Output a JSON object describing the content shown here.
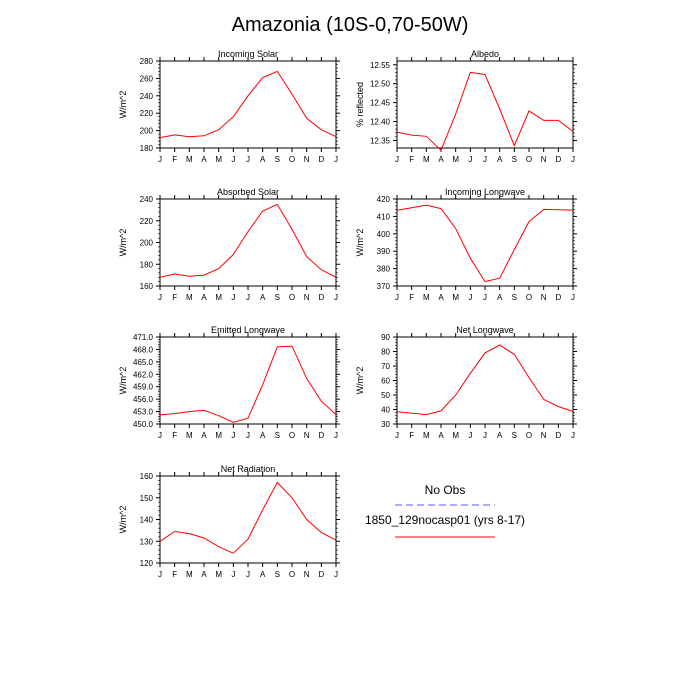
{
  "title": "Amazonia (10S-0,70-50W)",
  "legend": {
    "entries": [
      {
        "label": "No Obs",
        "color": "#5a5aff",
        "dashed": true
      },
      {
        "label": "1850_129nocasp01 (yrs 8-17)",
        "color": "#ff0000",
        "dashed": false
      }
    ]
  },
  "colors": {
    "model": "#ff0000",
    "obs": "#5a5aff",
    "axis": "#000000"
  },
  "chart_data": [
    {
      "type": "line",
      "title": "Incoming Solar",
      "ylabel": "W/m^2",
      "categories": [
        "J",
        "F",
        "M",
        "A",
        "M",
        "J",
        "J",
        "A",
        "S",
        "O",
        "N",
        "D",
        "J"
      ],
      "ylim": [
        180,
        280
      ],
      "yticks": [
        "180",
        "200",
        "220",
        "240",
        "260",
        "280"
      ],
      "ytick_values": [
        180,
        200,
        220,
        240,
        260,
        280
      ],
      "series": [
        {
          "name": "1850_129nocasp01 (yrs 8-17)",
          "values": [
            192,
            195,
            193,
            194,
            201,
            216,
            240,
            261,
            268,
            242,
            214,
            201,
            193
          ]
        }
      ]
    },
    {
      "type": "line",
      "title": "Albedo",
      "ylabel": "% reflected",
      "categories": [
        "J",
        "F",
        "M",
        "A",
        "M",
        "J",
        "J",
        "A",
        "S",
        "O",
        "N",
        "D",
        "J"
      ],
      "ylim": [
        12.33,
        12.56
      ],
      "yticks": [
        "12.35",
        "12.40",
        "12.45",
        "12.50",
        "12.55"
      ],
      "ytick_values": [
        12.35,
        12.4,
        12.45,
        12.5,
        12.55
      ],
      "series": [
        {
          "name": "1850_129nocasp01 (yrs 8-17)",
          "values": [
            12.372,
            12.364,
            12.361,
            12.324,
            12.42,
            12.53,
            12.524,
            12.433,
            12.336,
            12.428,
            12.403,
            12.403,
            12.374
          ]
        }
      ]
    },
    {
      "type": "line",
      "title": "Absorbed Solar",
      "ylabel": "W/m^2",
      "categories": [
        "J",
        "F",
        "M",
        "A",
        "M",
        "J",
        "J",
        "A",
        "S",
        "O",
        "N",
        "D",
        "J"
      ],
      "ylim": [
        160,
        240
      ],
      "yticks": [
        "160",
        "180",
        "200",
        "220",
        "240"
      ],
      "ytick_values": [
        160,
        180,
        200,
        220,
        240
      ],
      "series": [
        {
          "name": "1850_129nocasp01 (yrs 8-17)",
          "values": [
            168,
            171,
            169,
            170,
            176,
            189,
            210,
            229,
            235,
            212,
            187,
            175,
            168
          ]
        }
      ]
    },
    {
      "type": "line",
      "title": "Incoming Longwave",
      "ylabel": "W/m^2",
      "categories": [
        "J",
        "F",
        "M",
        "A",
        "M",
        "J",
        "J",
        "A",
        "S",
        "O",
        "N",
        "D",
        "J"
      ],
      "ylim": [
        370,
        420
      ],
      "yticks": [
        "370",
        "380",
        "390",
        "400",
        "410",
        "420"
      ],
      "ytick_values": [
        370,
        380,
        390,
        400,
        410,
        420
      ],
      "series": [
        {
          "name": "1850_129nocasp01 (yrs 8-17)",
          "values": [
            413.5,
            415,
            416.5,
            414.5,
            403,
            386,
            372.5,
            374.5,
            391,
            407,
            414,
            413.8,
            413.6
          ]
        }
      ]
    },
    {
      "type": "line",
      "title": "Emitted Longwave",
      "ylabel": "W/m^2",
      "categories": [
        "J",
        "F",
        "M",
        "A",
        "M",
        "J",
        "J",
        "A",
        "S",
        "O",
        "N",
        "D",
        "J"
      ],
      "ylim": [
        450,
        471
      ],
      "yticks": [
        "450.0",
        "453.0",
        "456.0",
        "459.0",
        "462.0",
        "465.0",
        "468.0",
        "471.0"
      ],
      "ytick_values": [
        450,
        453,
        456,
        459,
        462,
        465,
        468,
        471
      ],
      "series": [
        {
          "name": "1850_129nocasp01 (yrs 8-17)",
          "values": [
            452.2,
            452.5,
            453.0,
            453.3,
            452.0,
            450.4,
            451.4,
            459.5,
            468.6,
            468.8,
            461.0,
            455.5,
            452.3
          ]
        }
      ]
    },
    {
      "type": "line",
      "title": "Net Longwave",
      "ylabel": "W/m^2",
      "categories": [
        "J",
        "F",
        "M",
        "A",
        "M",
        "J",
        "J",
        "A",
        "S",
        "O",
        "N",
        "D",
        "J"
      ],
      "ylim": [
        30,
        90
      ],
      "yticks": [
        "30",
        "40",
        "50",
        "60",
        "70",
        "80",
        "90"
      ],
      "ytick_values": [
        30,
        40,
        50,
        60,
        70,
        80,
        90
      ],
      "series": [
        {
          "name": "1850_129nocasp01 (yrs 8-17)",
          "values": [
            38.5,
            37.5,
            36.5,
            39,
            50,
            65,
            79,
            84.5,
            78,
            62,
            47,
            42,
            38.7
          ]
        }
      ]
    },
    {
      "type": "line",
      "title": "Net Radiation",
      "ylabel": "W/m^2",
      "categories": [
        "J",
        "F",
        "M",
        "A",
        "M",
        "J",
        "J",
        "A",
        "S",
        "O",
        "N",
        "D",
        "J"
      ],
      "ylim": [
        120,
        160
      ],
      "yticks": [
        "120",
        "130",
        "140",
        "150",
        "160"
      ],
      "ytick_values": [
        120,
        130,
        140,
        150,
        160
      ],
      "series": [
        {
          "name": "1850_129nocasp01 (yrs 8-17)",
          "values": [
            130,
            134.5,
            133.5,
            131.5,
            127.5,
            124.5,
            131,
            144.5,
            157,
            150,
            140,
            134,
            130.5
          ]
        }
      ]
    }
  ]
}
